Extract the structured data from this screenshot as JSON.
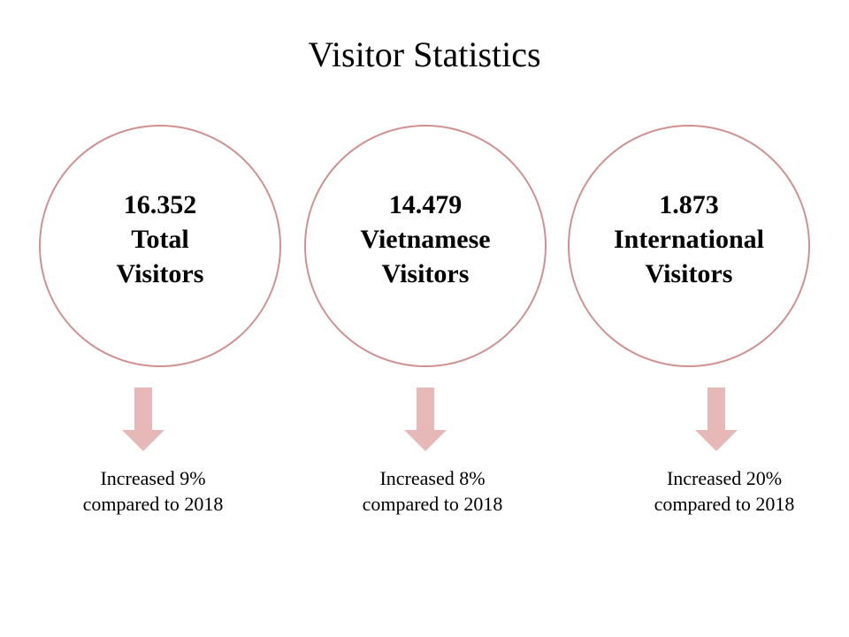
{
  "title": "Visitor Statistics",
  "colors": {
    "circle_border": "#d09090",
    "arrow_fill": "#e6b8b7"
  },
  "stats": [
    {
      "value": "16.352",
      "label_line1": "Total",
      "label_line2": "Visitors",
      "note_line1": "Increased 9%",
      "note_line2": "compared to 2018"
    },
    {
      "value": "14.479",
      "label_line1": "Vietnamese",
      "label_line2": "Visitors",
      "note_line1": "Increased 8%",
      "note_line2": "compared to 2018"
    },
    {
      "value": "1.873",
      "label_line1": "International",
      "label_line2": "Visitors",
      "note_line1": "Increased 20%",
      "note_line2": "compared to 2018"
    }
  ]
}
